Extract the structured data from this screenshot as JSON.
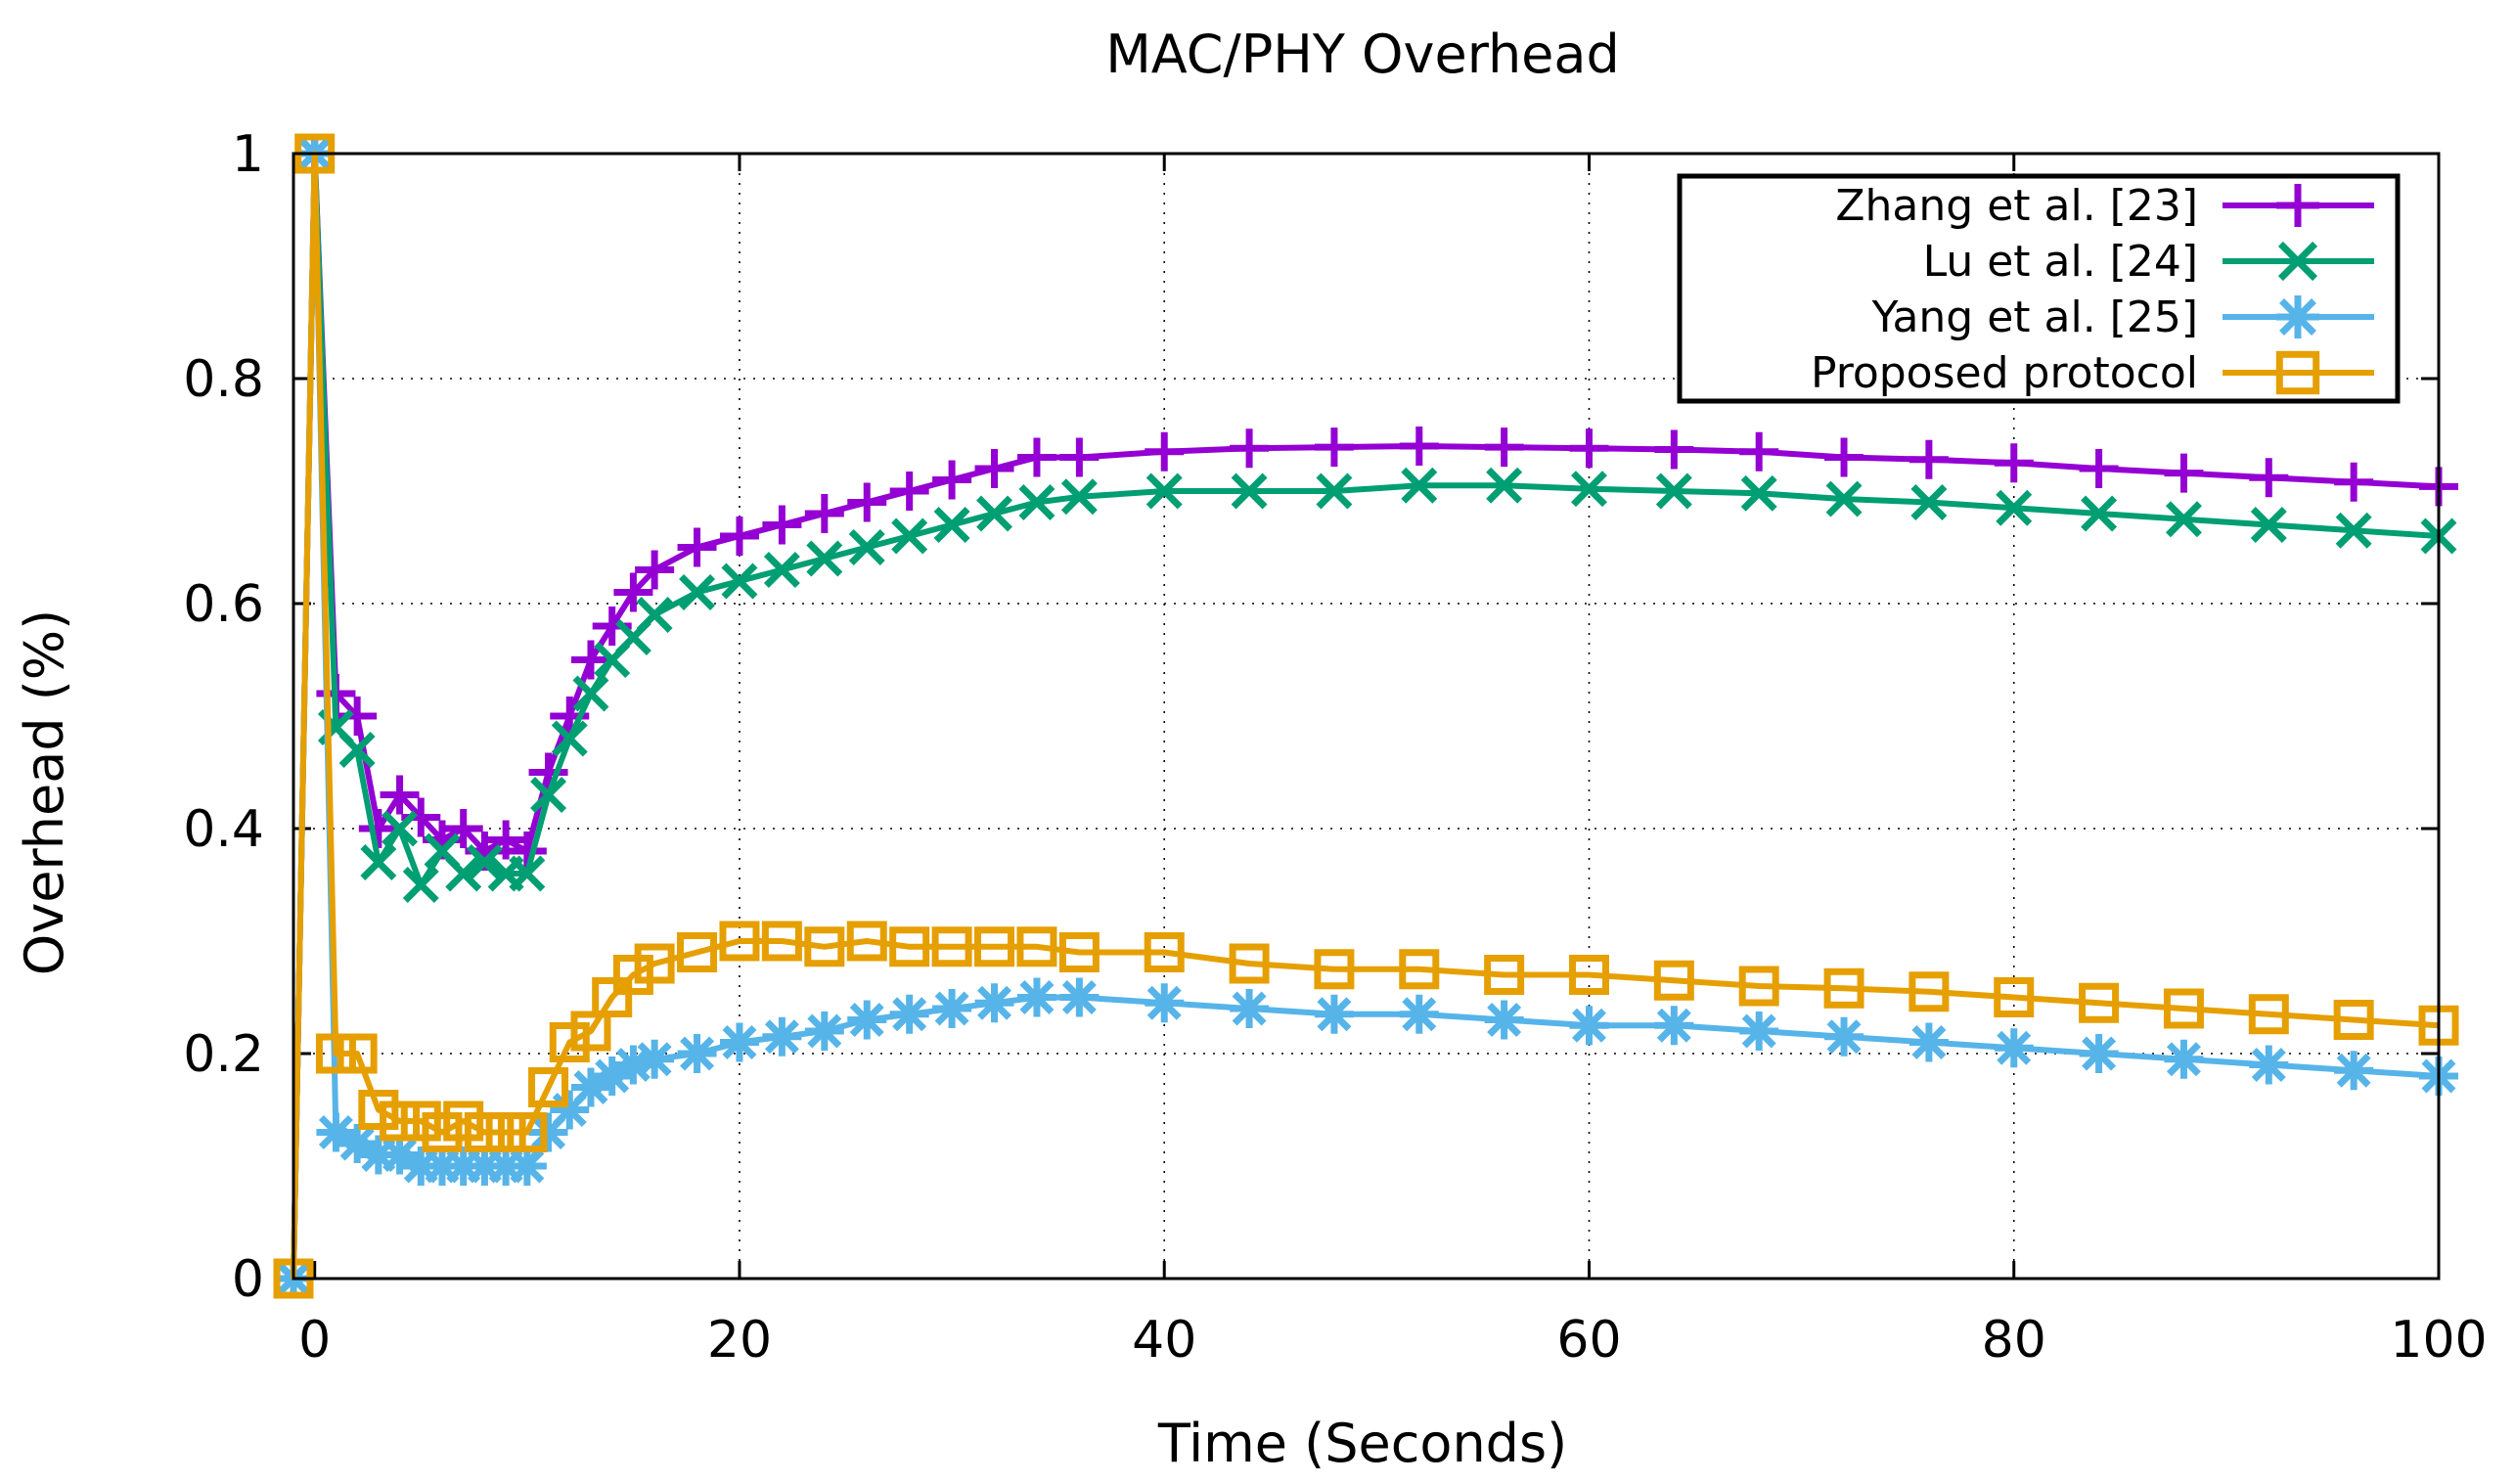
{
  "chart_data": {
    "type": "line",
    "title": "MAC/PHY Overhead",
    "xlabel": "Time (Seconds)",
    "ylabel": "Overhead (%)",
    "xlim": [
      -1,
      100
    ],
    "ylim": [
      0,
      1
    ],
    "xticks": [
      0,
      20,
      40,
      60,
      80,
      100
    ],
    "yticks": [
      0,
      0.2,
      0.4,
      0.6,
      0.8,
      1
    ],
    "xtick_labels": [
      "0",
      "20",
      "40",
      "60",
      "80",
      "100"
    ],
    "ytick_labels": [
      "0",
      "0.2",
      "0.4",
      "0.6",
      "0.8",
      "1"
    ],
    "grid": true,
    "legend_position": "top-right",
    "series": [
      {
        "name": "Zhang et al. [23]",
        "color": "#9400d3",
        "marker": "plus",
        "x": [
          -1,
          0,
          1,
          2,
          3,
          4,
          5,
          6,
          7,
          8,
          9,
          10,
          11,
          12,
          13,
          14,
          15,
          16,
          18,
          20,
          22,
          24,
          26,
          28,
          30,
          32,
          34,
          36,
          40,
          44,
          48,
          52,
          56,
          60,
          64,
          68,
          72,
          76,
          80,
          84,
          88,
          92,
          96,
          100
        ],
        "y": [
          0,
          1.0,
          0.52,
          0.5,
          0.4,
          0.43,
          0.41,
          0.39,
          0.4,
          0.38,
          0.39,
          0.38,
          0.45,
          0.5,
          0.55,
          0.58,
          0.61,
          0.63,
          0.65,
          0.66,
          0.67,
          0.68,
          0.69,
          0.7,
          0.71,
          0.72,
          0.73,
          0.73,
          0.735,
          0.738,
          0.739,
          0.74,
          0.739,
          0.738,
          0.737,
          0.735,
          0.73,
          0.728,
          0.725,
          0.72,
          0.716,
          0.712,
          0.708,
          0.704
        ]
      },
      {
        "name": "Lu et al. [24]",
        "color": "#009e73",
        "marker": "x",
        "x": [
          -1,
          0,
          1,
          2,
          3,
          4,
          5,
          6,
          7,
          8,
          9,
          10,
          11,
          12,
          13,
          14,
          15,
          16,
          18,
          20,
          22,
          24,
          26,
          28,
          30,
          32,
          34,
          36,
          40,
          44,
          48,
          52,
          56,
          60,
          64,
          68,
          72,
          76,
          80,
          84,
          88,
          92,
          96,
          100
        ],
        "y": [
          0,
          1.0,
          0.49,
          0.47,
          0.37,
          0.4,
          0.35,
          0.38,
          0.36,
          0.37,
          0.36,
          0.36,
          0.43,
          0.48,
          0.52,
          0.55,
          0.57,
          0.59,
          0.61,
          0.62,
          0.63,
          0.64,
          0.65,
          0.66,
          0.67,
          0.68,
          0.69,
          0.695,
          0.7,
          0.7,
          0.7,
          0.705,
          0.705,
          0.702,
          0.7,
          0.698,
          0.693,
          0.69,
          0.685,
          0.68,
          0.675,
          0.67,
          0.665,
          0.66
        ]
      },
      {
        "name": "Yang et al. [25]",
        "color": "#56b4e9",
        "marker": "star",
        "x": [
          -1,
          0,
          1,
          2,
          3,
          4,
          5,
          6,
          7,
          8,
          9,
          10,
          11,
          12,
          13,
          14,
          15,
          16,
          18,
          20,
          22,
          24,
          26,
          28,
          30,
          32,
          34,
          36,
          40,
          44,
          48,
          52,
          56,
          60,
          64,
          68,
          72,
          76,
          80,
          84,
          88,
          92,
          96,
          100
        ],
        "y": [
          0,
          1.0,
          0.13,
          0.12,
          0.11,
          0.11,
          0.1,
          0.1,
          0.1,
          0.1,
          0.1,
          0.1,
          0.13,
          0.15,
          0.17,
          0.18,
          0.19,
          0.195,
          0.2,
          0.21,
          0.215,
          0.22,
          0.23,
          0.235,
          0.24,
          0.245,
          0.25,
          0.25,
          0.245,
          0.24,
          0.235,
          0.235,
          0.23,
          0.225,
          0.225,
          0.22,
          0.215,
          0.21,
          0.205,
          0.2,
          0.195,
          0.19,
          0.185,
          0.18
        ]
      },
      {
        "name": "Proposed protocol",
        "color": "#e69f00",
        "marker": "square",
        "x": [
          -1,
          0,
          1,
          2,
          3,
          4,
          5,
          6,
          7,
          8,
          9,
          10,
          11,
          12,
          13,
          14,
          15,
          16,
          18,
          20,
          22,
          24,
          26,
          28,
          30,
          32,
          34,
          36,
          40,
          44,
          48,
          52,
          56,
          60,
          64,
          68,
          72,
          76,
          80,
          84,
          88,
          92,
          96,
          100
        ],
        "y": [
          0,
          1.0,
          0.2,
          0.2,
          0.15,
          0.14,
          0.14,
          0.13,
          0.14,
          0.13,
          0.13,
          0.13,
          0.17,
          0.21,
          0.22,
          0.25,
          0.27,
          0.28,
          0.29,
          0.3,
          0.3,
          0.295,
          0.3,
          0.295,
          0.295,
          0.295,
          0.295,
          0.29,
          0.29,
          0.28,
          0.275,
          0.275,
          0.27,
          0.27,
          0.265,
          0.26,
          0.258,
          0.255,
          0.25,
          0.245,
          0.24,
          0.235,
          0.23,
          0.225
        ]
      }
    ]
  }
}
